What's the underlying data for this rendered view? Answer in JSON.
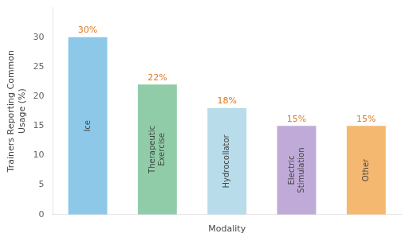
{
  "chart_data": {
    "type": "bar",
    "categories": [
      "Ice",
      "Therapeutic\nExercise",
      "Hydrocollator",
      "Electric\nStimulation",
      "Other"
    ],
    "values": [
      30,
      22,
      18,
      15,
      15
    ],
    "value_labels": [
      "30%",
      "22%",
      "18%",
      "15%",
      "15%"
    ],
    "colors": [
      "#8ec8e8",
      "#90cca8",
      "#b8dcea",
      "#c0aad8",
      "#f5b870"
    ],
    "xlabel": "Modality",
    "ylabel": "Trainers Reporting Common\nUsage (%)",
    "ylim": [
      0,
      35
    ],
    "yticks": [
      0,
      5,
      10,
      15,
      20,
      25,
      30
    ],
    "grid": false,
    "data_labels": true,
    "tick_labels": "y"
  }
}
